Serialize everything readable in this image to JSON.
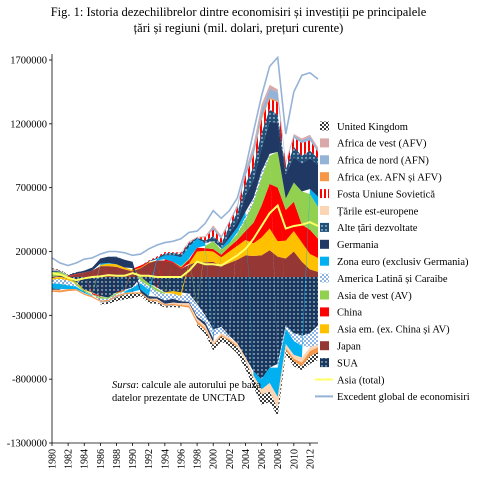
{
  "title_line1": "Fig. 1: Istoria dezechilibrelor dintre economisiri și investiții pe principalele",
  "title_line2": "țări și regiuni (mil. dolari, prețuri curente)",
  "source_label": "Sursa",
  "source_text": ": calcule ale autorului pe baza datelor prezentate de UNCTAD",
  "chart_data": {
    "type": "area",
    "stacked": true,
    "title": "Fig. 1: Istoria dezechilibrelor dintre economisiri și investiții pe principalele țări și regiuni (mil. dolari, prețuri curente)",
    "ylim": [
      -1300000,
      1700000
    ],
    "yticks": [
      -1300000,
      -800000,
      -300000,
      200000,
      700000,
      1200000,
      1700000
    ],
    "ytick_labels": [
      "-1300000",
      "-800000",
      "-300000",
      "200000",
      "700000",
      "1200000",
      "1700000"
    ],
    "xlim": [
      1980,
      2013
    ],
    "xticks": [
      1980,
      1982,
      1984,
      1986,
      1988,
      1990,
      1992,
      1994,
      1996,
      1998,
      2000,
      2002,
      2004,
      2006,
      2008,
      2010,
      2012
    ],
    "xtick_labels": [
      "1980",
      "1982",
      "1984",
      "1986",
      "1988",
      "1990",
      "1992",
      "1994",
      "1996",
      "1998",
      "2000",
      "2002",
      "2004",
      "2006",
      "2008",
      "2010",
      "2012"
    ],
    "legend_position": "right",
    "x": [
      1980,
      1981,
      1982,
      1983,
      1984,
      1985,
      1986,
      1987,
      1988,
      1989,
      1990,
      1991,
      1992,
      1993,
      1994,
      1995,
      1996,
      1997,
      1998,
      1999,
      2000,
      2001,
      2002,
      2003,
      2004,
      2005,
      2006,
      2007,
      2008,
      2009,
      2010,
      2011,
      2012,
      2013
    ],
    "series": [
      {
        "name": "United Kingdom",
        "color": "#b8b8b8",
        "pattern": "checker",
        "values": [
          5000,
          5000,
          5000,
          3000,
          0,
          0,
          -10000,
          -15000,
          -30000,
          -35000,
          -35000,
          -20000,
          -20000,
          -15000,
          -10000,
          -10000,
          -10000,
          0,
          -10000,
          -30000,
          -40000,
          -40000,
          -40000,
          -50000,
          -60000,
          -60000,
          -80000,
          -80000,
          -60000,
          -30000,
          -40000,
          -30000,
          -60000,
          -60000
        ]
      },
      {
        "name": "Africa de vest (AFV)",
        "color": "#d9a8a8",
        "values": [
          10000,
          5000,
          0,
          0,
          0,
          0,
          -5000,
          0,
          0,
          0,
          0,
          0,
          0,
          -5000,
          0,
          0,
          5000,
          10000,
          5000,
          10000,
          15000,
          10000,
          5000,
          10000,
          15000,
          30000,
          40000,
          30000,
          20000,
          10000,
          10000,
          15000,
          15000,
          15000
        ]
      },
      {
        "name": "Africa de nord (AFN)",
        "color": "#95b3d7",
        "values": [
          5000,
          0,
          0,
          0,
          0,
          0,
          -5000,
          -5000,
          -5000,
          -5000,
          0,
          0,
          0,
          0,
          -5000,
          -5000,
          0,
          0,
          -5000,
          0,
          20000,
          15000,
          10000,
          20000,
          30000,
          50000,
          60000,
          70000,
          70000,
          10000,
          20000,
          20000,
          30000,
          20000
        ]
      },
      {
        "name": "Africa (ex. AFN și AFV)",
        "color": "#f79646",
        "values": [
          -10000,
          -15000,
          -15000,
          -10000,
          -10000,
          -10000,
          -10000,
          -10000,
          -10000,
          -10000,
          -10000,
          -10000,
          -10000,
          -10000,
          -10000,
          -10000,
          -10000,
          -15000,
          -20000,
          -15000,
          -5000,
          -10000,
          -10000,
          -10000,
          0,
          10000,
          20000,
          10000,
          10000,
          -20000,
          -20000,
          -30000,
          -40000,
          -40000
        ]
      },
      {
        "name": "Fosta Uniune Sovietică",
        "color": "#ff0000",
        "pattern": "stripes",
        "values": [
          0,
          0,
          0,
          0,
          0,
          0,
          0,
          0,
          0,
          0,
          0,
          0,
          5000,
          10000,
          10000,
          5000,
          10000,
          5000,
          0,
          25000,
          50000,
          35000,
          30000,
          35000,
          60000,
          90000,
          100000,
          80000,
          100000,
          40000,
          70000,
          100000,
          80000,
          50000
        ]
      },
      {
        "name": "Țările est-europene",
        "color": "#fcd5b4",
        "values": [
          -5000,
          -5000,
          0,
          0,
          0,
          0,
          0,
          0,
          0,
          0,
          0,
          0,
          -5000,
          -10000,
          -5000,
          -10000,
          -15000,
          -20000,
          -20000,
          -20000,
          -20000,
          -15000,
          -15000,
          -20000,
          -30000,
          -30000,
          -40000,
          -70000,
          -90000,
          -30000,
          -30000,
          -40000,
          -30000,
          -20000
        ]
      },
      {
        "name": "Alte țări dezvoltate",
        "color": "#1f4e79",
        "pattern": "dots",
        "values": [
          10000,
          5000,
          0,
          0,
          -5000,
          0,
          0,
          0,
          5000,
          0,
          -5000,
          0,
          5000,
          10000,
          15000,
          20000,
          25000,
          30000,
          10000,
          20000,
          40000,
          40000,
          50000,
          70000,
          90000,
          100000,
          120000,
          100000,
          60000,
          40000,
          80000,
          60000,
          60000,
          50000
        ]
      },
      {
        "name": "Germania",
        "color": "#1f3864",
        "values": [
          -10000,
          -5000,
          5000,
          10000,
          15000,
          25000,
          40000,
          50000,
          55000,
          60000,
          50000,
          -20000,
          -20000,
          -15000,
          -25000,
          -30000,
          -15000,
          -10000,
          -15000,
          -25000,
          -30000,
          0,
          40000,
          45000,
          130000,
          140000,
          180000,
          250000,
          230000,
          190000,
          200000,
          220000,
          240000,
          250000
        ]
      },
      {
        "name": "Zona euro (exclusiv Germania)",
        "color": "#00b0f0",
        "values": [
          -40000,
          -40000,
          -30000,
          -20000,
          -10000,
          -5000,
          10000,
          5000,
          0,
          -10000,
          -30000,
          -50000,
          -50000,
          10000,
          30000,
          50000,
          70000,
          90000,
          70000,
          20000,
          -20000,
          10000,
          40000,
          40000,
          40000,
          -30000,
          -80000,
          -120000,
          -230000,
          -120000,
          -110000,
          -90000,
          40000,
          80000
        ]
      },
      {
        "name": "America Latină și Caraibe",
        "color": "#8db4e2",
        "pattern": "checker",
        "values": [
          -30000,
          -40000,
          -40000,
          -10000,
          0,
          -5000,
          -15000,
          -10000,
          -10000,
          -5000,
          -5000,
          -20000,
          -30000,
          -45000,
          -50000,
          -40000,
          -40000,
          -65000,
          -90000,
          -55000,
          -50000,
          -50000,
          -15000,
          10000,
          20000,
          35000,
          50000,
          15000,
          -30000,
          -25000,
          -60000,
          -80000,
          -110000,
          -150000
        ]
      },
      {
        "name": "Asia de vest (AV)",
        "color": "#92d050",
        "values": [
          40000,
          30000,
          0,
          -15000,
          -10000,
          -5000,
          -15000,
          -10000,
          -10000,
          -5000,
          5000,
          -30000,
          -20000,
          -20000,
          -10000,
          0,
          10000,
          10000,
          -10000,
          20000,
          60000,
          40000,
          30000,
          50000,
          90000,
          160000,
          220000,
          220000,
          280000,
          90000,
          150000,
          260000,
          280000,
          250000
        ]
      },
      {
        "name": "China",
        "color": "#ff0000",
        "values": [
          0,
          0,
          5000,
          5000,
          0,
          -10000,
          -5000,
          0,
          -5000,
          -5000,
          10000,
          15000,
          5000,
          -10000,
          10000,
          10000,
          10000,
          30000,
          30000,
          20000,
          20000,
          20000,
          35000,
          45000,
          70000,
          160000,
          250000,
          350000,
          420000,
          240000,
          230000,
          140000,
          190000,
          150000
        ]
      },
      {
        "name": "Asia em. (ex. China și AV)",
        "color": "#ffc000",
        "values": [
          -10000,
          -15000,
          -15000,
          -10000,
          -5000,
          -5000,
          10000,
          20000,
          20000,
          15000,
          10000,
          5000,
          5000,
          0,
          -5000,
          -20000,
          -30000,
          10000,
          80000,
          90000,
          80000,
          70000,
          90000,
          110000,
          120000,
          100000,
          140000,
          170000,
          120000,
          140000,
          160000,
          150000,
          120000,
          110000
        ]
      },
      {
        "name": "Japan",
        "color": "#953735",
        "values": [
          -10000,
          5000,
          5000,
          20000,
          35000,
          50000,
          85000,
          85000,
          80000,
          60000,
          45000,
          70000,
          110000,
          130000,
          130000,
          110000,
          65000,
          95000,
          120000,
          115000,
          120000,
          85000,
          110000,
          135000,
          170000,
          165000,
          170000,
          210000,
          160000,
          145000,
          200000,
          120000,
          60000,
          40000
        ]
      },
      {
        "name": "SUA",
        "color": "#17375e",
        "pattern": "dots",
        "values": [
          0,
          5000,
          -10000,
          -40000,
          -100000,
          -120000,
          -150000,
          -160000,
          -120000,
          -100000,
          -80000,
          0,
          -50000,
          -80000,
          -120000,
          -110000,
          -120000,
          -130000,
          -210000,
          -300000,
          -410000,
          -390000,
          -460000,
          -520000,
          -630000,
          -740000,
          -800000,
          -710000,
          -680000,
          -380000,
          -440000,
          -460000,
          -440000,
          -380000
        ]
      },
      {
        "name": "Asia (total)",
        "color": "#ffff66",
        "type": "line",
        "values": [
          30000,
          20000,
          -5000,
          -25000,
          -10000,
          0,
          5000,
          15000,
          10000,
          10000,
          30000,
          10000,
          10000,
          0,
          0,
          0,
          0,
          50000,
          120000,
          100000,
          100000,
          90000,
          130000,
          170000,
          220000,
          300000,
          400000,
          500000,
          560000,
          380000,
          400000,
          410000,
          430000,
          400000
        ]
      },
      {
        "name": "Excedent global de economisiri",
        "color": "#95b3d7",
        "type": "line",
        "values": [
          150000,
          110000,
          90000,
          110000,
          140000,
          150000,
          180000,
          200000,
          200000,
          190000,
          170000,
          180000,
          220000,
          250000,
          270000,
          280000,
          300000,
          350000,
          360000,
          420000,
          520000,
          460000,
          520000,
          620000,
          850000,
          1140000,
          1420000,
          1650000,
          1720000,
          1120000,
          1450000,
          1580000,
          1600000,
          1550000
        ]
      }
    ]
  }
}
